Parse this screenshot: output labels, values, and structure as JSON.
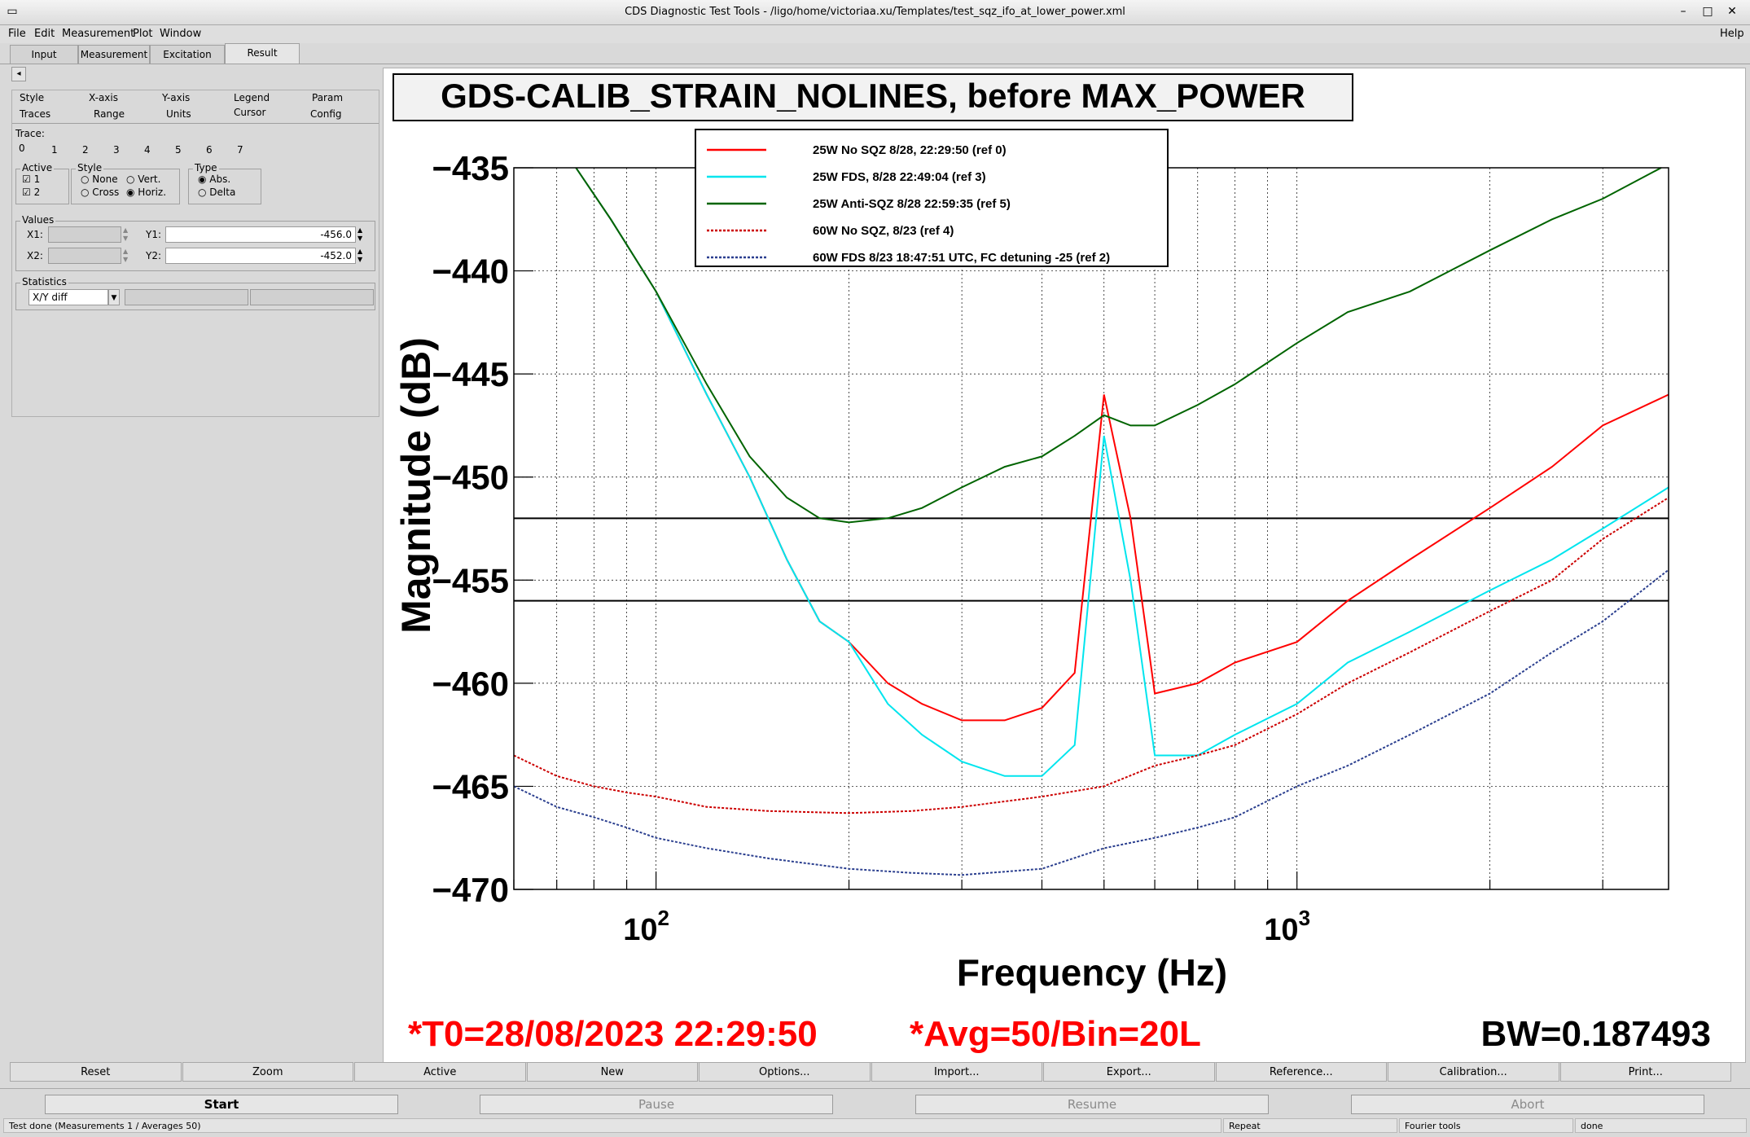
{
  "window": {
    "title": "CDS Diagnostic Test Tools - /ligo/home/victoriaa.xu/Templates/test_sqz_ifo_at_lower_power.xml"
  },
  "menubar": {
    "items": [
      "File",
      "Edit",
      "Measurement",
      "Plot",
      "Window"
    ],
    "help": "Help"
  },
  "main_tabs": [
    "Input",
    "Measurement",
    "Excitation",
    "Result"
  ],
  "sub_tabs": {
    "row1": [
      "Style",
      "X-axis",
      "Y-axis",
      "Legend",
      "Param"
    ],
    "row2": [
      "Traces",
      "Range",
      "Units",
      "Cursor",
      "Config"
    ]
  },
  "trace_panel": {
    "label": "Trace:",
    "numbers": [
      "0",
      "1",
      "2",
      "3",
      "4",
      "5",
      "6",
      "7"
    ]
  },
  "cursor": {
    "active_label": "Active",
    "active": [
      "1",
      "2"
    ],
    "style_label": "Style",
    "style_options": [
      "None",
      "Vert.",
      "Cross",
      "Horiz."
    ],
    "type_label": "Type",
    "type_options": [
      "Abs.",
      "Delta"
    ],
    "values_label": "Values",
    "x1_label": "X1:",
    "x2_label": "X2:",
    "y1_label": "Y1:",
    "y2_label": "Y2:",
    "y1": "-456.0",
    "y2": "-452.0",
    "statistics_label": "Statistics",
    "statistics_selected": "X/Y diff"
  },
  "chart_data": {
    "type": "line",
    "title": "GDS-CALIB_STRAIN_NOLINES, before MAX_POWER",
    "xlabel": "Frequency (Hz)",
    "ylabel": "Magnitude (dB)",
    "x_scale": "log",
    "xlim": [
      60,
      3800
    ],
    "ylim": [
      -470,
      -435
    ],
    "y_ticks": [
      "−435",
      "−440",
      "−445",
      "−450",
      "−455",
      "−460",
      "−465",
      "−470"
    ],
    "x_tick_labels": [
      {
        "base": "10",
        "exp": "2"
      },
      {
        "base": "10",
        "exp": "3"
      }
    ],
    "grid": true,
    "cursor_lines": [
      -452,
      -456
    ],
    "legend_position": "top-center",
    "series": [
      {
        "name": "25W No SQZ 8/28, 22:29:50 (ref 0)",
        "color": "#ff0000",
        "dash": "solid",
        "x": [
          75,
          85,
          100,
          120,
          140,
          160,
          180,
          200,
          230,
          260,
          300,
          350,
          400,
          450,
          500,
          550,
          600,
          700,
          800,
          1000,
          1200,
          1500,
          2000,
          2500,
          3000,
          3800
        ],
        "y": [
          -435,
          -437.5,
          -441,
          -446,
          -450,
          -454,
          -457,
          -458,
          -460,
          -461,
          -461.8,
          -461.8,
          -461.2,
          -459.5,
          -446,
          -452,
          -460.5,
          -460,
          -459,
          -458,
          -456,
          -454,
          -451.5,
          -449.5,
          -447.5,
          -446
        ]
      },
      {
        "name": "25W FDS, 8/28 22:49:04 (ref 3)",
        "color": "#00e5ee",
        "dash": "solid",
        "x": [
          75,
          85,
          100,
          120,
          140,
          160,
          180,
          200,
          230,
          260,
          300,
          350,
          400,
          450,
          500,
          550,
          600,
          700,
          800,
          1000,
          1200,
          1500,
          2000,
          2500,
          3000,
          3800
        ],
        "y": [
          -435,
          -437.5,
          -441,
          -446,
          -450,
          -454,
          -457,
          -458,
          -461,
          -462.5,
          -463.8,
          -464.5,
          -464.5,
          -463,
          -448,
          -455,
          -463.5,
          -463.5,
          -462.5,
          -461,
          -459,
          -457.5,
          -455.5,
          -454,
          -452.5,
          -450.5
        ]
      },
      {
        "name": "25W Anti-SQZ 8/28 22:59:35 (ref 5)",
        "color": "#006400",
        "dash": "solid",
        "x": [
          75,
          85,
          100,
          120,
          140,
          160,
          180,
          200,
          230,
          260,
          300,
          350,
          400,
          450,
          500,
          550,
          600,
          700,
          800,
          1000,
          1200,
          1500,
          2000,
          2500,
          3000,
          3700
        ],
        "y": [
          -435,
          -437.5,
          -441,
          -445.5,
          -449,
          -451,
          -452,
          -452.2,
          -452,
          -451.5,
          -450.5,
          -449.5,
          -449,
          -448,
          -447,
          -447.5,
          -447.5,
          -446.5,
          -445.5,
          -443.5,
          -442,
          -441,
          -439,
          -437.5,
          -436.5,
          -435
        ]
      },
      {
        "name": "60W No SQZ, 8/23 (ref 4)",
        "color": "#cc0000",
        "dash": "dotted",
        "x": [
          60,
          70,
          80,
          90,
          100,
          120,
          150,
          200,
          250,
          300,
          400,
          500,
          600,
          700,
          800,
          1000,
          1200,
          1500,
          2000,
          2500,
          3000,
          3800
        ],
        "y": [
          -463.5,
          -464.5,
          -465,
          -465.3,
          -465.5,
          -466,
          -466.2,
          -466.3,
          -466.2,
          -466,
          -465.5,
          -465,
          -464,
          -463.5,
          -463,
          -461.5,
          -460,
          -458.5,
          -456.5,
          -455,
          -453,
          -451
        ]
      },
      {
        "name": "60W FDS 8/23 18:47:51 UTC, FC detuning -25 (ref 2)",
        "color": "#2b3f8f",
        "dash": "dotted",
        "x": [
          60,
          70,
          80,
          90,
          100,
          120,
          150,
          200,
          250,
          300,
          400,
          500,
          600,
          700,
          800,
          1000,
          1200,
          1500,
          2000,
          2500,
          3000,
          3800
        ],
        "y": [
          -465,
          -466,
          -466.5,
          -467,
          -467.5,
          -468,
          -468.5,
          -469,
          -469.2,
          -469.3,
          -469,
          -468,
          -467.5,
          -467,
          -466.5,
          -465,
          -464,
          -462.5,
          -460.5,
          -458.5,
          -457,
          -454.5
        ]
      }
    ]
  },
  "footer_info": {
    "t0": "*T0=28/08/2023 22:29:50",
    "avg": "*Avg=50/Bin=20L",
    "bw": "BW=0.187493"
  },
  "plot_buttons": [
    "Reset",
    "Zoom",
    "Active",
    "New",
    "Options...",
    "Import...",
    "Export...",
    "Reference...",
    "Calibration...",
    "Print..."
  ],
  "control_buttons": [
    "Start",
    "Pause",
    "Resume",
    "Abort"
  ],
  "statusbar": {
    "message": "Test done (Measurements 1 / Averages 50)",
    "repeat": "Repeat",
    "tools": "Fourier tools",
    "state": "done"
  },
  "colors": {
    "accent_red": "#ff0000",
    "window_bg": "#d9d9d9"
  }
}
